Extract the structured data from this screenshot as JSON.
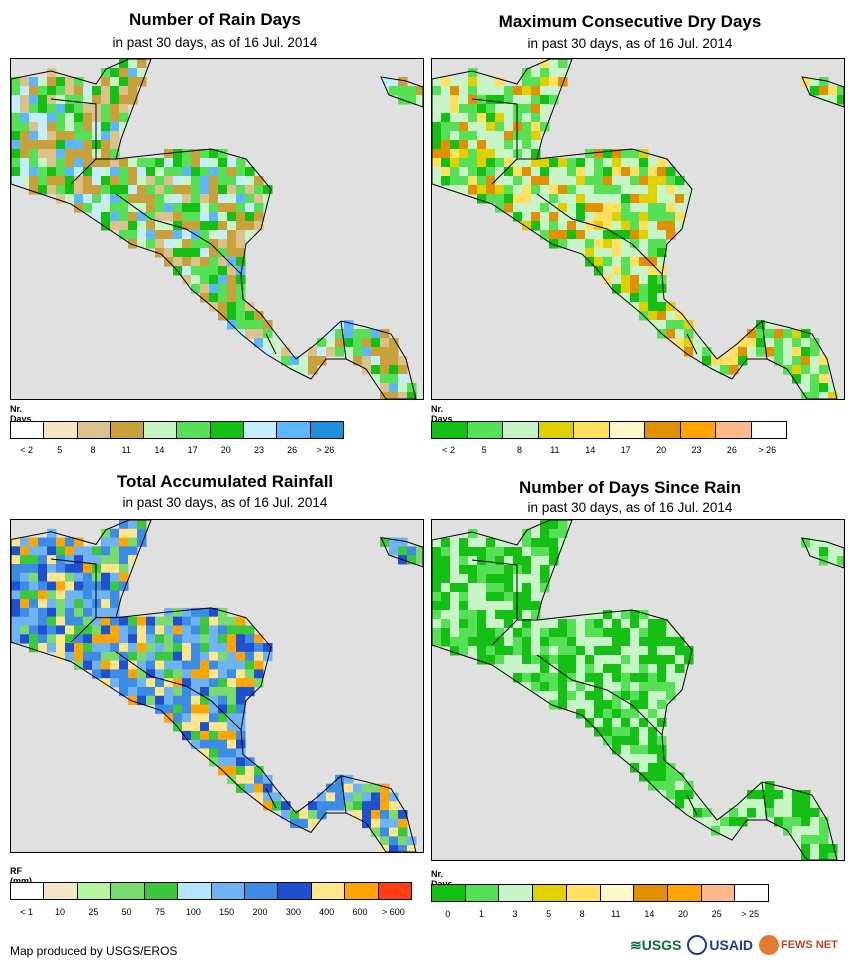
{
  "panels": [
    {
      "title": "Number of Rain Days",
      "subtitle": "in past 30 days, as of 16 Jul. 2014",
      "legend_title": "Nr. Days",
      "legend_colors": [
        "#ffffff",
        "#f5e6c8",
        "#dcc28a",
        "#c9a13a",
        "#c8f5c8",
        "#55e055",
        "#14c014",
        "#c6ecff",
        "#5eb6ff",
        "#1e8fd8"
      ],
      "legend_ticks": [
        "< 2",
        "5",
        "8",
        "11",
        "14",
        "17",
        "20",
        "23",
        "26",
        "> 26"
      ],
      "palette": [
        "#c9a13a",
        "#c9a13a",
        "#dcc28a",
        "#55e055",
        "#14c014",
        "#c8f5c8",
        "#55e055",
        "#5eb6ff",
        "#c6ecff"
      ]
    },
    {
      "title": "Maximum Consecutive Dry Days",
      "subtitle": "in past 30 days, as of 16 Jul. 2014",
      "legend_title": "Nr. Days",
      "legend_colors": [
        "#14c014",
        "#55e055",
        "#c8f5c8",
        "#e0d000",
        "#ffe060",
        "#fff8c8",
        "#e09000",
        "#ffa500",
        "#ffb98a",
        "#ffffff"
      ],
      "legend_ticks": [
        "< 2",
        "5",
        "8",
        "11",
        "14",
        "17",
        "20",
        "23",
        "26",
        "> 26"
      ],
      "palette": [
        "#c8f5c8",
        "#c8f5c8",
        "#55e055",
        "#55e055",
        "#14c014",
        "#e0d000",
        "#ffe060",
        "#c8f5c8",
        "#e09000"
      ]
    },
    {
      "title": "Total Accumulated Rainfall",
      "subtitle": "in past 30 days, as of 16 Jul. 2014",
      "legend_title": "RF (mm)",
      "legend_colors": [
        "#ffffff",
        "#f5e6c8",
        "#b4f5a0",
        "#7ada6e",
        "#3cc83c",
        "#b4e6ff",
        "#6eb4f5",
        "#3c8ce6",
        "#1e50d2",
        "#ffe68c",
        "#ffa500",
        "#ff3c14"
      ],
      "legend_ticks": [
        "< 1",
        "10",
        "25",
        "50",
        "75",
        "100",
        "150",
        "200",
        "300",
        "400",
        "600",
        "> 600"
      ],
      "palette": [
        "#3c8ce6",
        "#6eb4f5",
        "#1e50d2",
        "#7ada6e",
        "#3cc83c",
        "#6eb4f5",
        "#ffe68c",
        "#ffa500",
        "#3c8ce6"
      ]
    },
    {
      "title": "Number of Days Since Rain",
      "subtitle": "in past 30 days, as of 16 Jul. 2014",
      "legend_title": "Nr. Days",
      "legend_colors": [
        "#14c014",
        "#55e055",
        "#c8f5c8",
        "#e0d000",
        "#ffe060",
        "#fff8c8",
        "#e09000",
        "#ffa500",
        "#ffb98a",
        "#ffffff"
      ],
      "legend_ticks": [
        "0",
        "1",
        "3",
        "5",
        "8",
        "11",
        "14",
        "20",
        "25",
        "> 25"
      ],
      "palette": [
        "#14c014",
        "#14c014",
        "#55e055",
        "#c8f5c8",
        "#c8f5c8",
        "#14c014",
        "#55e055",
        "#c8f5c8",
        "#14c014"
      ]
    }
  ],
  "footer": {
    "credit": "Map produced by USGS/EROS"
  },
  "logos": {
    "usgs": "≋USGS",
    "usaid": "USAID",
    "fews": "FEWS NET"
  }
}
